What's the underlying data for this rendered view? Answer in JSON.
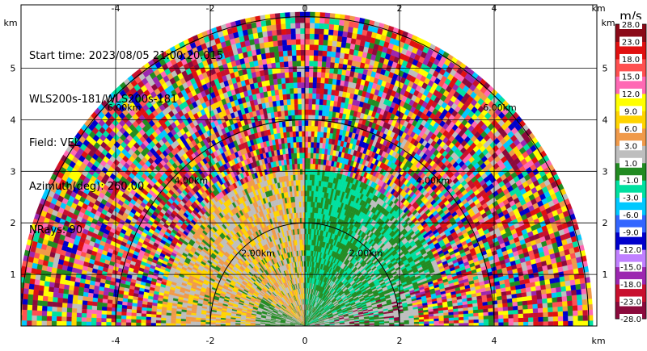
{
  "info": {
    "start_time": "Start time: 2023/08/05 21:00:20.015",
    "instrument": "WLS200s-181/WLS200s-181",
    "field": "Field: VEL",
    "azimuth": "Azimuth(deg): 260.00",
    "nrays": "NRays: 90"
  },
  "chart_data": {
    "type": "heatmap",
    "subtype": "polar-rhi-sector",
    "field": "VEL",
    "units": "m/s",
    "azimuth_deg": 260.0,
    "n_rays": 90,
    "x_unit_label": "km",
    "y_unit_label": "km",
    "x_ticks": [
      -4,
      -2,
      0,
      2,
      4
    ],
    "y_ticks": [
      1,
      2,
      3,
      4,
      5
    ],
    "xlim": [
      -6.0,
      6.0
    ],
    "ylim": [
      0.0,
      5.6
    ],
    "range_rings": [
      {
        "r": 2.0,
        "label": "2.00km"
      },
      {
        "r": 4.0,
        "label": "4.00km"
      },
      {
        "r": 6.0,
        "label": "6.00km"
      }
    ],
    "colorbar": {
      "title": "m/s",
      "boundaries": [
        -28.0,
        -23.0,
        -18.0,
        -15.0,
        -12.0,
        -9.0,
        -6.0,
        -3.0,
        -1.0,
        1.0,
        3.0,
        6.0,
        9.0,
        12.0,
        15.0,
        18.0,
        23.0,
        28.0
      ],
      "tick_labels": [
        "-28.0",
        "-23.0",
        "-18.0",
        "-15.0",
        "-12.0",
        "-9.0",
        "-6.0",
        "-3.0",
        "-1.0",
        "1.0",
        "3.0",
        "6.0",
        "9.0",
        "12.0",
        "15.0",
        "18.0",
        "23.0",
        "28.0"
      ],
      "colors": [
        "#8b0a3c",
        "#c8102e",
        "#9c27b0",
        "#c080ff",
        "#0000cc",
        "#3366ff",
        "#00c8ff",
        "#00e0a0",
        "#228b22",
        "#bebebe",
        "#f09a4a",
        "#ffd400",
        "#ffff00",
        "#ff69b4",
        "#ff5050",
        "#e01010",
        "#8b0a18"
      ]
    },
    "regions": [
      {
        "description_hidden": true,
        "r_max": 3.0,
        "angle_min": 90,
        "angle_max": 180,
        "values": [
          -0.5,
          2.0,
          4.0,
          0.3,
          2.0
        ]
      },
      {
        "description_hidden": true,
        "r_max": 3.0,
        "angle_min": 0,
        "angle_max": 90,
        "values": [
          -2.0,
          -4.0,
          -2.0,
          -0.3,
          -4.0
        ]
      }
    ]
  }
}
